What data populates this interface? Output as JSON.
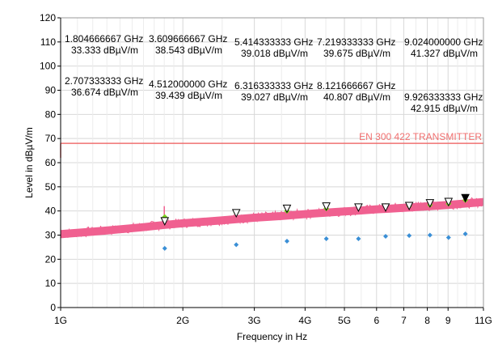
{
  "chart_data": {
    "type": "line",
    "title": "",
    "xlabel": "Frequency in Hz",
    "ylabel": "Level in dBµV/m",
    "x_scale": "log",
    "xlim": [
      1,
      11
    ],
    "ylim": [
      0,
      120
    ],
    "x_unit": "GHz",
    "grid": true,
    "x_ticks": [
      {
        "value": 1,
        "label": "1G"
      },
      {
        "value": 2,
        "label": "2G"
      },
      {
        "value": 3,
        "label": "3G"
      },
      {
        "value": 4,
        "label": "4G"
      },
      {
        "value": 5,
        "label": "5G"
      },
      {
        "value": 6,
        "label": "6"
      },
      {
        "value": 7,
        "label": "7"
      },
      {
        "value": 8,
        "label": "8"
      },
      {
        "value": 9,
        "label": "9"
      },
      {
        "value": 11,
        "label": "11G"
      }
    ],
    "y_ticks": [
      0,
      10,
      20,
      30,
      40,
      50,
      60,
      70,
      80,
      90,
      100,
      110,
      120
    ],
    "limit_line": {
      "label": "EN 300 422 TRANSMITTER",
      "level": 68,
      "color": "#f07070"
    },
    "trace": {
      "color": "#f06090",
      "points": [
        [
          1.0,
          30.5
        ],
        [
          1.2,
          31.5
        ],
        [
          1.4,
          32.5
        ],
        [
          1.6,
          33.4
        ],
        [
          1.8,
          34.3
        ],
        [
          2.0,
          35.0
        ],
        [
          2.5,
          36.2
        ],
        [
          3.0,
          37.3
        ],
        [
          3.5,
          38.0
        ],
        [
          4.0,
          38.8
        ],
        [
          4.5,
          39.4
        ],
        [
          5.0,
          39.9
        ],
        [
          5.5,
          40.3
        ],
        [
          6.0,
          40.8
        ],
        [
          6.5,
          41.1
        ],
        [
          7.0,
          41.4
        ],
        [
          7.5,
          41.7
        ],
        [
          8.0,
          42.0
        ],
        [
          8.5,
          42.3
        ],
        [
          9.0,
          42.6
        ],
        [
          9.5,
          42.9
        ],
        [
          10.0,
          43.2
        ],
        [
          10.5,
          43.5
        ],
        [
          11.0,
          43.8
        ]
      ]
    },
    "peak_markers": [
      {
        "x": 1.804666667,
        "y": 33.333
      },
      {
        "x": 2.707333333,
        "y": 36.674
      },
      {
        "x": 3.609666667,
        "y": 38.543
      },
      {
        "x": 4.512,
        "y": 39.439
      },
      {
        "x": 5.414333333,
        "y": 39.018
      },
      {
        "x": 6.316333333,
        "y": 39.027
      },
      {
        "x": 7.219333333,
        "y": 39.675
      },
      {
        "x": 8.121666667,
        "y": 40.807
      },
      {
        "x": 9.024,
        "y": 41.327
      },
      {
        "x": 9.926333333,
        "y": 42.915
      }
    ],
    "green_markers": [
      {
        "x": 1.804666667,
        "y": 37.5
      },
      {
        "x": 2.707333333,
        "y": 39.3
      },
      {
        "x": 3.609666667,
        "y": 40.0
      },
      {
        "x": 4.512,
        "y": 41.0
      },
      {
        "x": 5.414333333,
        "y": 42.0
      },
      {
        "x": 6.316333333,
        "y": 42.0
      },
      {
        "x": 7.219333333,
        "y": 42.0
      },
      {
        "x": 8.121666667,
        "y": 42.5
      },
      {
        "x": 9.024,
        "y": 43.0
      },
      {
        "x": 9.926333333,
        "y": 44.5
      }
    ],
    "avg_markers": [
      {
        "x": 1.804666667,
        "y": 24.5
      },
      {
        "x": 2.707333333,
        "y": 26.0
      },
      {
        "x": 3.609666667,
        "y": 27.5
      },
      {
        "x": 4.512,
        "y": 28.5
      },
      {
        "x": 5.414333333,
        "y": 28.5
      },
      {
        "x": 6.316333333,
        "y": 29.5
      },
      {
        "x": 7.219333333,
        "y": 29.8
      },
      {
        "x": 8.121666667,
        "y": 30.0
      },
      {
        "x": 9.024,
        "y": 29.0
      },
      {
        "x": 9.926333333,
        "y": 30.5
      }
    ],
    "annotations": [
      {
        "freq": "1.804666667 GHz",
        "level": "33.333 dBµV/m"
      },
      {
        "freq": "3.609666667 GHz",
        "level": "38.543 dBµV/m"
      },
      {
        "freq": "5.414333333 GHz",
        "level": "39.018 dBµV/m"
      },
      {
        "freq": "7.219333333 GHz",
        "level": "39.675 dBµV/m"
      },
      {
        "freq": "9.024000000 GHz",
        "level": "41.327 dBµV/m"
      },
      {
        "freq": "2.707333333 GHz",
        "level": "36.674 dBµV/m"
      },
      {
        "freq": "4.512000000 GHz",
        "level": "39.439 dBµV/m"
      },
      {
        "freq": "6.316333333 GHz",
        "level": "39.027 dBµV/m"
      },
      {
        "freq": "8.121666667 GHz",
        "level": "40.807 dBµV/m"
      },
      {
        "freq": "9.926333333 GHz",
        "level": "42.915 dBµV/m"
      }
    ]
  },
  "colors": {
    "trace": "#f06090",
    "limit": "#f07070",
    "green_marker": "#7ed321",
    "avg_marker": "#3a8fd6",
    "grid": "#d8d8d8"
  }
}
